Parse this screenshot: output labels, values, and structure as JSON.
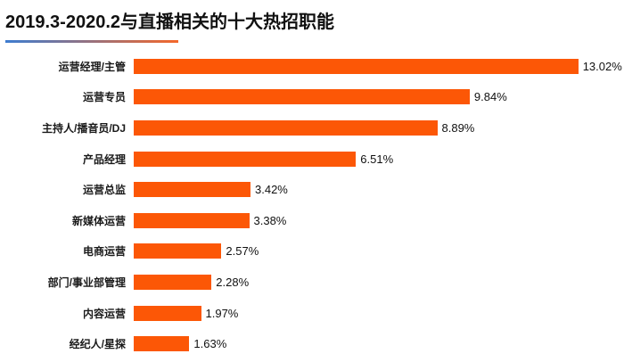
{
  "title": "2019.3-2020.2与直播相关的十大热招职能",
  "colors": {
    "bar": "#FC5706",
    "underline_gradient_start": "#3D7CD0",
    "underline_gradient_end": "#F4672A",
    "title_text": "#111111",
    "background": "#FFFFFF"
  },
  "chart_data": {
    "type": "bar",
    "orientation": "horizontal",
    "title": "2019.3-2020.2与直播相关的十大热招职能",
    "categories": [
      "运营经理/主管",
      "运营专员",
      "主持人/播音员/DJ",
      "产品经理",
      "运营总监",
      "新媒体运营",
      "电商运营",
      "部门/事业部管理",
      "内容运营",
      "经纪人/星探"
    ],
    "values": [
      13.02,
      9.84,
      8.89,
      6.51,
      3.42,
      3.38,
      2.57,
      2.28,
      1.97,
      1.63
    ],
    "value_labels": [
      "13.02%",
      "9.84%",
      "8.89%",
      "6.51%",
      "3.42%",
      "3.38%",
      "2.57%",
      "2.28%",
      "1.97%",
      "1.63%"
    ],
    "xlabel": "",
    "ylabel": "",
    "xlim": [
      0,
      14
    ],
    "grid": false,
    "legend": false,
    "axis_visible": false,
    "value_labels_position": "end-of-bar"
  }
}
